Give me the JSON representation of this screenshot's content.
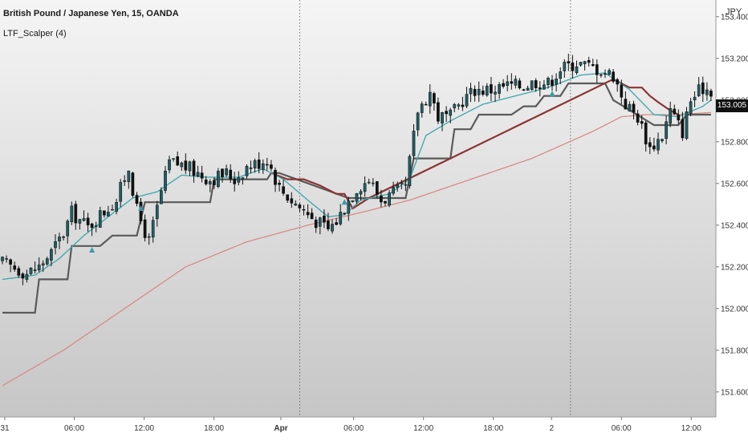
{
  "header": {
    "title": "British Pound / Japanese Yen, 15, OANDA",
    "indicator": "LTF_Scalper (4)"
  },
  "axis": {
    "currency": "JPY",
    "last_price": "153.005"
  },
  "colors": {
    "background_top": "#f5f5f5",
    "background_bottom": "#c6c6c6",
    "candle_up": "#1f5e63",
    "candle_down": "#111111",
    "ema_fast": "#3aa6ad",
    "ema_slow": "#d88a86",
    "trail_support": "#5a5a5a",
    "trail_resistance": "#8b3434",
    "signal_up": "#3a9ca8"
  },
  "chart_data": {
    "type": "candlestick",
    "symbol": "GBPJPY",
    "timeframe": "15",
    "ylim": [
      151.48,
      153.48
    ],
    "y_ticks": [
      "151.600",
      "151.800",
      "152.000",
      "152.200",
      "152.400",
      "152.600",
      "152.800",
      "153.000",
      "153.200",
      "153.400"
    ],
    "x_ticks": [
      {
        "label": "31",
        "bold": false
      },
      {
        "label": "06:00",
        "bold": false
      },
      {
        "label": "12:00",
        "bold": false
      },
      {
        "label": "18:00",
        "bold": false
      },
      {
        "label": "Apr",
        "bold": true
      },
      {
        "label": "06:00",
        "bold": false
      },
      {
        "label": "12:00",
        "bold": false
      },
      {
        "label": "18:00",
        "bold": false
      },
      {
        "label": "2",
        "bold": false
      },
      {
        "label": "06:00",
        "bold": false
      },
      {
        "label": "12:00",
        "bold": false
      }
    ],
    "session_dividers": [
      "Mar 31 18:00",
      "Apr 1 18:00"
    ],
    "price_path": [
      [
        0,
        152.22
      ],
      [
        6,
        152.17
      ],
      [
        9,
        152.2
      ],
      [
        12,
        152.27
      ],
      [
        15,
        152.36
      ],
      [
        17,
        152.46
      ],
      [
        21,
        152.39
      ],
      [
        24,
        152.45
      ],
      [
        28,
        152.52
      ],
      [
        31,
        152.68
      ],
      [
        33,
        152.47
      ],
      [
        36,
        152.32
      ],
      [
        39,
        152.56
      ],
      [
        41,
        152.7
      ],
      [
        44,
        152.69
      ],
      [
        47,
        152.66
      ],
      [
        51,
        152.62
      ],
      [
        55,
        152.65
      ],
      [
        57,
        152.62
      ],
      [
        60,
        152.68
      ],
      [
        63,
        152.7
      ],
      [
        65,
        152.72
      ],
      [
        68,
        152.58
      ],
      [
        71,
        152.52
      ],
      [
        74,
        152.47
      ],
      [
        77,
        152.42
      ],
      [
        80,
        152.38
      ],
      [
        82,
        152.42
      ],
      [
        85,
        152.52
      ],
      [
        87,
        152.58
      ],
      [
        90,
        152.62
      ],
      [
        93,
        152.52
      ],
      [
        96,
        152.55
      ],
      [
        99,
        152.58
      ],
      [
        102,
        152.95
      ],
      [
        105,
        153.04
      ],
      [
        107,
        152.92
      ],
      [
        110,
        152.92
      ],
      [
        113,
        153.0
      ],
      [
        116,
        153.05
      ],
      [
        120,
        153.05
      ],
      [
        124,
        153.07
      ],
      [
        128,
        153.07
      ],
      [
        131,
        153.09
      ],
      [
        134,
        153.08
      ],
      [
        137,
        153.15
      ],
      [
        141,
        153.18
      ],
      [
        146,
        153.15
      ],
      [
        150,
        153.12
      ],
      [
        153,
        152.98
      ],
      [
        156,
        152.92
      ],
      [
        159,
        152.77
      ],
      [
        162,
        152.83
      ],
      [
        164,
        152.95
      ],
      [
        167,
        152.85
      ],
      [
        169,
        153.0
      ],
      [
        172,
        153.06
      ],
      [
        174,
        153.05
      ]
    ],
    "ema_fast_path": [
      [
        0,
        152.14
      ],
      [
        8,
        152.16
      ],
      [
        14,
        152.24
      ],
      [
        20,
        152.35
      ],
      [
        26,
        152.44
      ],
      [
        32,
        152.53
      ],
      [
        38,
        152.56
      ],
      [
        44,
        152.64
      ],
      [
        50,
        152.63
      ],
      [
        58,
        152.63
      ],
      [
        64,
        152.67
      ],
      [
        69,
        152.62
      ],
      [
        75,
        152.52
      ],
      [
        80,
        152.44
      ],
      [
        84,
        152.45
      ],
      [
        88,
        152.52
      ],
      [
        95,
        152.55
      ],
      [
        100,
        152.62
      ],
      [
        104,
        152.83
      ],
      [
        110,
        152.9
      ],
      [
        118,
        152.98
      ],
      [
        126,
        153.02
      ],
      [
        134,
        153.06
      ],
      [
        142,
        153.12
      ],
      [
        148,
        153.13
      ],
      [
        154,
        153.05
      ],
      [
        160,
        152.93
      ],
      [
        166,
        152.92
      ],
      [
        172,
        152.97
      ],
      [
        174,
        153.0
      ]
    ],
    "ema_slow_path": [
      [
        0,
        151.63
      ],
      [
        15,
        151.8
      ],
      [
        30,
        152.0
      ],
      [
        45,
        152.2
      ],
      [
        60,
        152.32
      ],
      [
        75,
        152.4
      ],
      [
        90,
        152.47
      ],
      [
        100,
        152.52
      ],
      [
        115,
        152.62
      ],
      [
        130,
        152.72
      ],
      [
        145,
        152.85
      ],
      [
        152,
        152.92
      ],
      [
        158,
        152.93
      ],
      [
        165,
        152.93
      ],
      [
        174,
        152.94
      ]
    ],
    "trail_support_path": [
      [
        0,
        151.98
      ],
      [
        8,
        151.98
      ],
      [
        9,
        152.14
      ],
      [
        16,
        152.14
      ],
      [
        17,
        152.3
      ],
      [
        24,
        152.3
      ],
      [
        27,
        152.35
      ],
      [
        33,
        152.35
      ],
      [
        35,
        152.51
      ],
      [
        51,
        152.51
      ],
      [
        52,
        152.62
      ],
      [
        65,
        152.62
      ],
      [
        66,
        152.65
      ],
      [
        68,
        152.65
      ],
      [
        85,
        152.53
      ],
      [
        90,
        152.53
      ],
      [
        92,
        152.53
      ],
      [
        99,
        152.53
      ],
      [
        101,
        152.72
      ],
      [
        110,
        152.72
      ],
      [
        111,
        152.86
      ],
      [
        115,
        152.86
      ],
      [
        117,
        152.93
      ],
      [
        125,
        152.93
      ],
      [
        128,
        152.97
      ],
      [
        131,
        152.97
      ],
      [
        133,
        153.02
      ],
      [
        137,
        153.02
      ],
      [
        139,
        153.08
      ],
      [
        148,
        153.08
      ],
      [
        150,
        153.0
      ],
      [
        160,
        152.88
      ],
      [
        166,
        152.88
      ],
      [
        168,
        152.93
      ],
      [
        174,
        152.93
      ]
    ],
    "trail_resistance_path": [
      [
        66,
        152.65
      ],
      [
        70,
        152.62
      ],
      [
        74,
        152.62
      ],
      [
        78,
        152.59
      ],
      [
        82,
        152.55
      ],
      [
        84,
        152.55
      ],
      [
        86,
        152.48
      ],
      [
        90,
        152.53
      ],
      [
        150,
        153.1
      ],
      [
        154,
        153.06
      ],
      [
        157,
        153.06
      ],
      [
        159,
        153.02
      ],
      [
        161,
        152.99
      ],
      [
        164,
        152.95
      ],
      [
        166,
        152.93
      ]
    ],
    "signals": [
      {
        "bar": 22,
        "type": "up",
        "price": 152.28
      },
      {
        "bar": 34,
        "type": "up",
        "price": 152.48
      },
      {
        "bar": 84,
        "type": "up",
        "price": 152.51
      },
      {
        "bar": 135,
        "type": "up",
        "price": 153.03
      }
    ]
  }
}
